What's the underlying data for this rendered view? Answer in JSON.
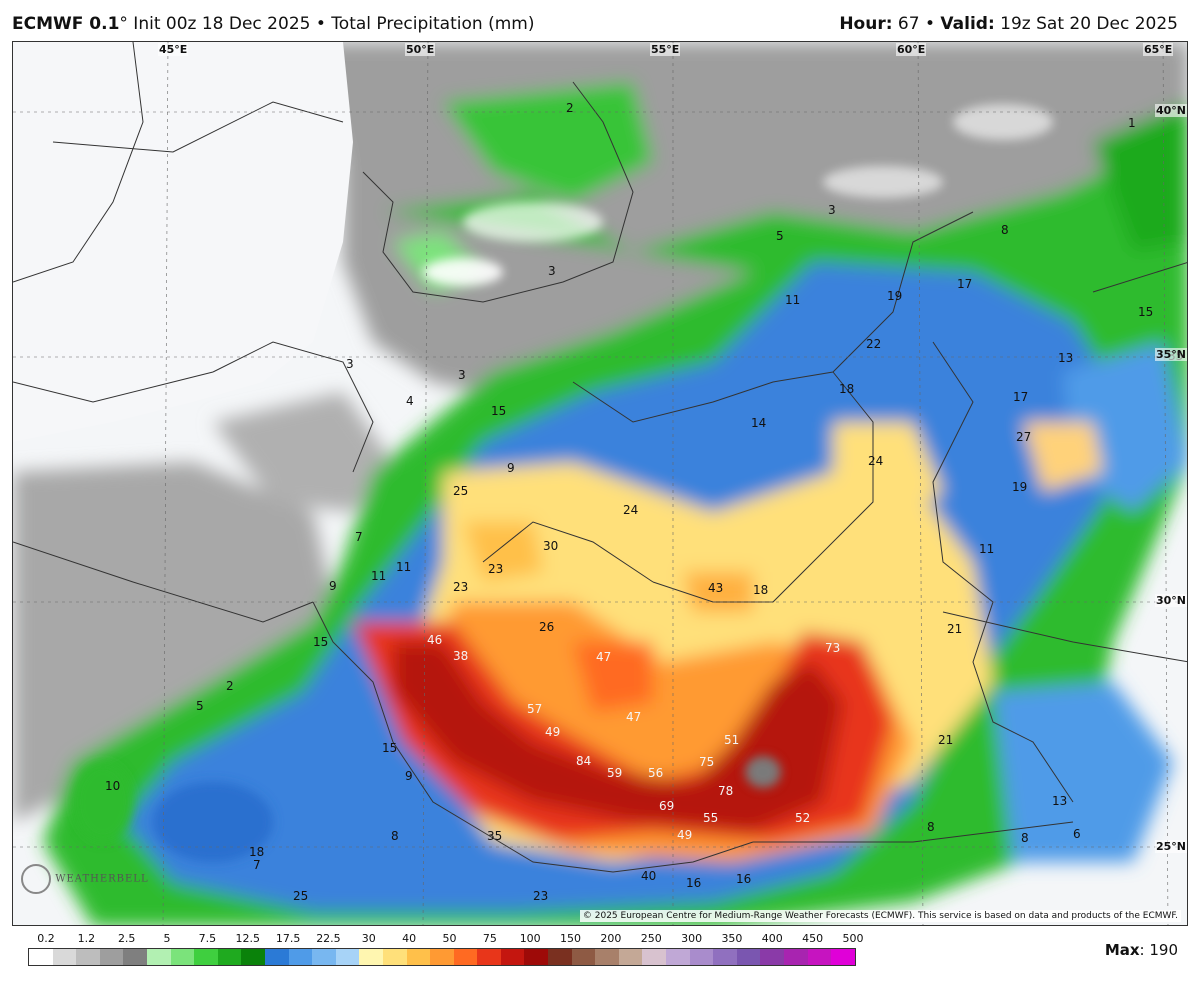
{
  "header": {
    "model": "ECMWF 0.1",
    "deg": "°",
    "init": " Init 00z 18 Dec 2025",
    "sep": " • ",
    "field": "Total Precipitation (mm)",
    "hour_label": "Hour:",
    "hour_value": " 67",
    "valid_label": "Valid:",
    "valid_value": " 19z Sat 20 Dec 2025"
  },
  "map": {
    "lon_labels": [
      "45°E",
      "50°E",
      "55°E",
      "60°E",
      "65°E"
    ],
    "lat_labels": [
      "40°N",
      "35°N",
      "30°N",
      "25°N"
    ],
    "values": [
      "2",
      "3",
      "1",
      "3",
      "5",
      "8",
      "17",
      "15",
      "13",
      "35",
      "11",
      "19",
      "22",
      "18",
      "17",
      "27",
      "3",
      "3",
      "4",
      "15",
      "14",
      "24",
      "19",
      "9",
      "25",
      "24",
      "30",
      "7",
      "11",
      "11",
      "23",
      "23",
      "43",
      "18",
      "11",
      "9",
      "15",
      "26",
      "21",
      "2",
      "5",
      "46",
      "38",
      "47",
      "73",
      "57",
      "47",
      "21",
      "15",
      "49",
      "51",
      "75",
      "84",
      "59",
      "56",
      "10",
      "78",
      "9",
      "69",
      "55",
      "52",
      "13",
      "8",
      "8",
      "6",
      "8",
      "18",
      "7",
      "49",
      "35",
      "25",
      "23",
      "40",
      "16",
      "16"
    ],
    "copyright": "© 2025 European Centre for Medium-Range Weather Forecasts (ECMWF). This service is based on data and products of the ECMWF.",
    "logo_text": "WEATHERBELL"
  },
  "legend": {
    "ticks": [
      "0.2",
      "1.2",
      "2.5",
      "5",
      "7.5",
      "12.5",
      "17.5",
      "22.5",
      "30",
      "40",
      "50",
      "75",
      "100",
      "150",
      "200",
      "250",
      "300",
      "350",
      "400",
      "450",
      "500"
    ],
    "colors": [
      "#ffffff",
      "#d9d9d9",
      "#bdbdbd",
      "#9e9e9e",
      "#7f7f7f",
      "#b2f0b2",
      "#7be37b",
      "#3fcf3f",
      "#1faa1f",
      "#0a820a",
      "#2b7ad6",
      "#4f9be8",
      "#78b7f0",
      "#a7d3f7",
      "#fff6b0",
      "#ffe07a",
      "#ffc04a",
      "#ff9a33",
      "#ff6a22",
      "#e8361a",
      "#c4160f",
      "#9e0a08",
      "#7a3020",
      "#8e5a44",
      "#a8806a",
      "#c4a896",
      "#d8c2cf",
      "#c0a8d6",
      "#a98ccc",
      "#9070bf",
      "#7a56b0",
      "#8a3aa8",
      "#a824b0",
      "#c614c0",
      "#e000d8"
    ],
    "max_label": "Max",
    "max_value": ": 190"
  }
}
